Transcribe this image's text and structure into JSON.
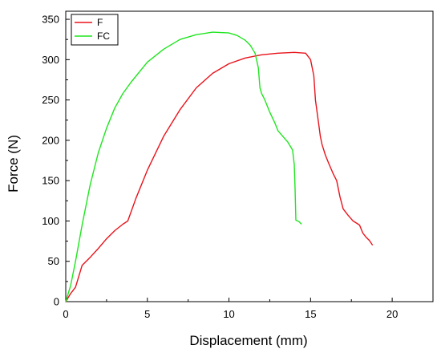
{
  "chart_data": {
    "type": "line",
    "title": "",
    "xlabel": "Displacement (mm)",
    "ylabel": "Force (N)",
    "xlim": [
      0,
      22.5
    ],
    "ylim": [
      0,
      360
    ],
    "xticks": [
      0,
      5,
      10,
      15,
      20
    ],
    "yticks": [
      0,
      50,
      100,
      150,
      200,
      250,
      300,
      350
    ],
    "grid": false,
    "legend_position": "top-left",
    "series": [
      {
        "name": "F",
        "color": "#e8131b",
        "x": [
          0,
          0.3,
          0.6,
          1.0,
          1.5,
          2.0,
          2.5,
          3.0,
          3.5,
          3.8,
          4.3,
          5.0,
          6.0,
          7.0,
          8.0,
          9.0,
          10.0,
          11.0,
          12.0,
          13.0,
          14.0,
          14.7,
          15.0,
          15.2,
          15.3,
          15.5,
          15.6,
          15.7,
          15.9,
          16.1,
          16.4,
          16.6,
          16.8,
          17.0,
          17.3,
          17.6,
          18.0,
          18.2,
          18.4,
          18.6,
          18.8
        ],
        "y": [
          0,
          10,
          18,
          45,
          55,
          66,
          78,
          88,
          96,
          100,
          128,
          163,
          205,
          238,
          265,
          283,
          295,
          302,
          306,
          308,
          309,
          308,
          300,
          280,
          250,
          220,
          205,
          195,
          182,
          172,
          158,
          150,
          130,
          115,
          107,
          100,
          95,
          85,
          80,
          76,
          70
        ]
      },
      {
        "name": "FC",
        "color": "#1fe51f",
        "x": [
          0,
          0.3,
          0.6,
          1.0,
          1.5,
          2.0,
          2.5,
          3.0,
          3.5,
          4.0,
          5.0,
          6.0,
          7.0,
          8.0,
          9.0,
          10.0,
          10.5,
          11.0,
          11.3,
          11.6,
          11.8,
          11.9,
          12.0,
          12.2,
          12.5,
          12.8,
          13.0,
          13.3,
          13.6,
          13.9,
          14.0,
          14.05,
          14.1,
          14.2,
          14.3,
          14.45
        ],
        "y": [
          0,
          20,
          50,
          95,
          145,
          185,
          215,
          240,
          258,
          272,
          297,
          313,
          325,
          331,
          334,
          333,
          330,
          324,
          318,
          308,
          290,
          265,
          258,
          250,
          235,
          222,
          212,
          205,
          198,
          188,
          170,
          140,
          101,
          100,
          99,
          96
        ]
      }
    ]
  }
}
